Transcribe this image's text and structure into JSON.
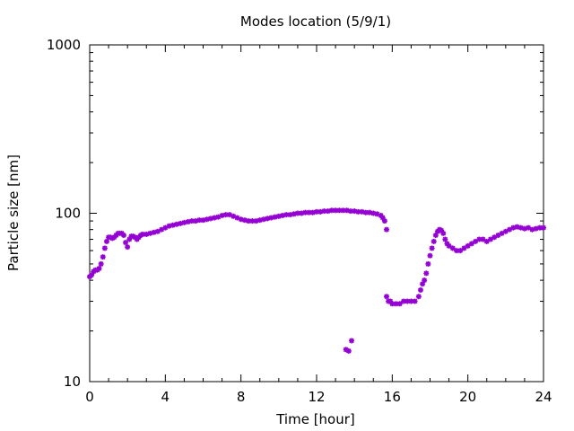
{
  "chart_data": {
    "type": "scatter",
    "title": "Modes location (5/9/1)",
    "xlabel": "Time [hour]",
    "ylabel": "Particle size [nm]",
    "xlim": [
      0,
      24
    ],
    "ylim": [
      10,
      1000
    ],
    "yscale": "log",
    "xticks": [
      0,
      4,
      8,
      12,
      16,
      20,
      24
    ],
    "xtick_labels": [
      "0",
      "4",
      "8",
      "12",
      "16",
      "20",
      "24"
    ],
    "yticks": [
      10,
      100,
      1000
    ],
    "ytick_labels": [
      "10",
      "100",
      "1000"
    ],
    "grid": false,
    "marker_color": "#9400d3",
    "series": [
      {
        "points": [
          [
            0.0,
            42
          ],
          [
            0.1,
            43
          ],
          [
            0.2,
            45
          ],
          [
            0.3,
            46
          ],
          [
            0.4,
            46
          ],
          [
            0.5,
            47
          ],
          [
            0.6,
            50
          ],
          [
            0.7,
            55
          ],
          [
            0.8,
            62
          ],
          [
            0.9,
            68
          ],
          [
            1.0,
            72
          ],
          [
            1.1,
            72
          ],
          [
            1.2,
            71
          ],
          [
            1.3,
            72
          ],
          [
            1.4,
            74
          ],
          [
            1.5,
            76
          ],
          [
            1.6,
            76
          ],
          [
            1.7,
            76
          ],
          [
            1.8,
            74
          ],
          [
            1.9,
            67
          ],
          [
            2.0,
            63
          ],
          [
            2.1,
            70
          ],
          [
            2.2,
            73
          ],
          [
            2.3,
            73
          ],
          [
            2.4,
            72
          ],
          [
            2.5,
            70
          ],
          [
            2.6,
            72
          ],
          [
            2.7,
            74
          ],
          [
            2.8,
            75
          ],
          [
            3.0,
            75
          ],
          [
            3.2,
            76
          ],
          [
            3.4,
            77
          ],
          [
            3.6,
            78
          ],
          [
            3.8,
            80
          ],
          [
            4.0,
            82
          ],
          [
            4.2,
            84
          ],
          [
            4.4,
            85
          ],
          [
            4.6,
            86
          ],
          [
            4.8,
            87
          ],
          [
            5.0,
            88
          ],
          [
            5.2,
            89
          ],
          [
            5.4,
            90
          ],
          [
            5.6,
            90
          ],
          [
            5.8,
            91
          ],
          [
            6.0,
            91
          ],
          [
            6.2,
            92
          ],
          [
            6.4,
            93
          ],
          [
            6.6,
            94
          ],
          [
            6.8,
            95
          ],
          [
            7.0,
            97
          ],
          [
            7.2,
            98
          ],
          [
            7.4,
            98
          ],
          [
            7.6,
            96
          ],
          [
            7.8,
            94
          ],
          [
            8.0,
            92
          ],
          [
            8.2,
            91
          ],
          [
            8.4,
            90
          ],
          [
            8.6,
            90
          ],
          [
            8.8,
            90
          ],
          [
            9.0,
            91
          ],
          [
            9.2,
            92
          ],
          [
            9.4,
            93
          ],
          [
            9.6,
            94
          ],
          [
            9.8,
            95
          ],
          [
            10.0,
            96
          ],
          [
            10.2,
            97
          ],
          [
            10.4,
            98
          ],
          [
            10.6,
            98
          ],
          [
            10.8,
            99
          ],
          [
            11.0,
            100
          ],
          [
            11.2,
            100
          ],
          [
            11.4,
            101
          ],
          [
            11.6,
            101
          ],
          [
            11.8,
            101
          ],
          [
            12.0,
            102
          ],
          [
            12.2,
            102
          ],
          [
            12.4,
            103
          ],
          [
            12.6,
            103
          ],
          [
            12.8,
            104
          ],
          [
            13.0,
            104
          ],
          [
            13.2,
            104
          ],
          [
            13.4,
            104
          ],
          [
            13.6,
            104
          ],
          [
            13.8,
            103
          ],
          [
            14.0,
            103
          ],
          [
            14.2,
            102
          ],
          [
            14.4,
            102
          ],
          [
            14.6,
            101
          ],
          [
            14.8,
            101
          ],
          [
            15.0,
            100
          ],
          [
            15.2,
            99
          ],
          [
            15.4,
            97
          ],
          [
            15.5,
            94
          ],
          [
            15.6,
            90
          ],
          [
            15.7,
            80
          ],
          [
            13.55,
            15.5
          ],
          [
            13.7,
            15.2
          ],
          [
            13.85,
            17.5
          ],
          [
            15.7,
            32
          ],
          [
            15.8,
            30
          ],
          [
            15.9,
            30
          ],
          [
            16.0,
            29
          ],
          [
            16.2,
            29
          ],
          [
            16.4,
            29
          ],
          [
            16.6,
            30
          ],
          [
            16.8,
            30
          ],
          [
            17.0,
            30
          ],
          [
            17.2,
            30
          ],
          [
            17.4,
            32
          ],
          [
            17.5,
            35
          ],
          [
            17.6,
            38
          ],
          [
            17.7,
            40
          ],
          [
            17.8,
            44
          ],
          [
            17.9,
            50
          ],
          [
            18.0,
            56
          ],
          [
            18.1,
            62
          ],
          [
            18.2,
            68
          ],
          [
            18.3,
            74
          ],
          [
            18.4,
            78
          ],
          [
            18.5,
            80
          ],
          [
            18.6,
            79
          ],
          [
            18.7,
            76
          ],
          [
            18.8,
            70
          ],
          [
            18.9,
            66
          ],
          [
            19.0,
            64
          ],
          [
            19.2,
            62
          ],
          [
            19.4,
            60
          ],
          [
            19.6,
            60
          ],
          [
            19.8,
            62
          ],
          [
            20.0,
            64
          ],
          [
            20.2,
            66
          ],
          [
            20.4,
            68
          ],
          [
            20.6,
            70
          ],
          [
            20.8,
            70
          ],
          [
            21.0,
            68
          ],
          [
            21.2,
            70
          ],
          [
            21.4,
            72
          ],
          [
            21.6,
            74
          ],
          [
            21.8,
            76
          ],
          [
            22.0,
            78
          ],
          [
            22.2,
            80
          ],
          [
            22.4,
            82
          ],
          [
            22.6,
            83
          ],
          [
            22.8,
            82
          ],
          [
            23.0,
            81
          ],
          [
            23.2,
            82
          ],
          [
            23.4,
            80
          ],
          [
            23.6,
            81
          ],
          [
            23.8,
            82
          ],
          [
            24.0,
            82
          ]
        ]
      }
    ]
  }
}
